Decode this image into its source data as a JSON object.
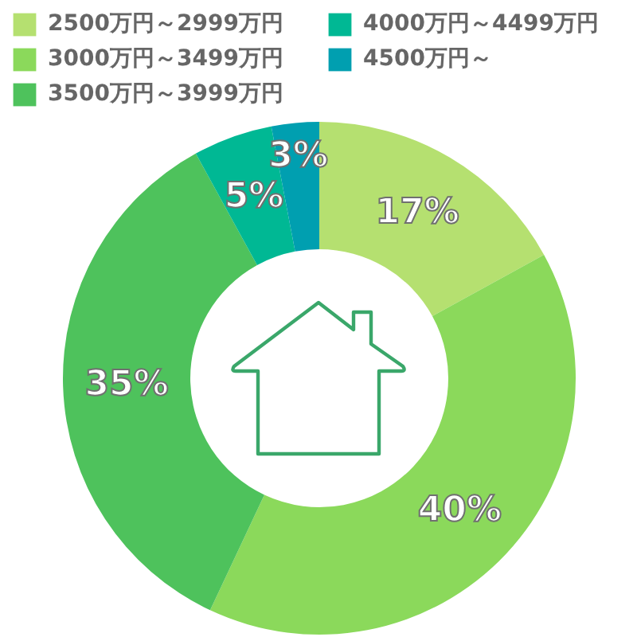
{
  "chart_data": {
    "type": "donut",
    "categories": [
      "2500万円～2999万円",
      "3000万円～3499万円",
      "3500万円～3999万円",
      "4000万円～4499万円",
      "4500万円～"
    ],
    "values": [
      17,
      40,
      35,
      5,
      3
    ],
    "colors": [
      "#b5e070",
      "#8bd95b",
      "#4ec25c",
      "#00b894",
      "#009fb0"
    ],
    "value_labels": [
      "17%",
      "40%",
      "35%",
      "5%",
      "3%"
    ],
    "legend": "top"
  }
}
